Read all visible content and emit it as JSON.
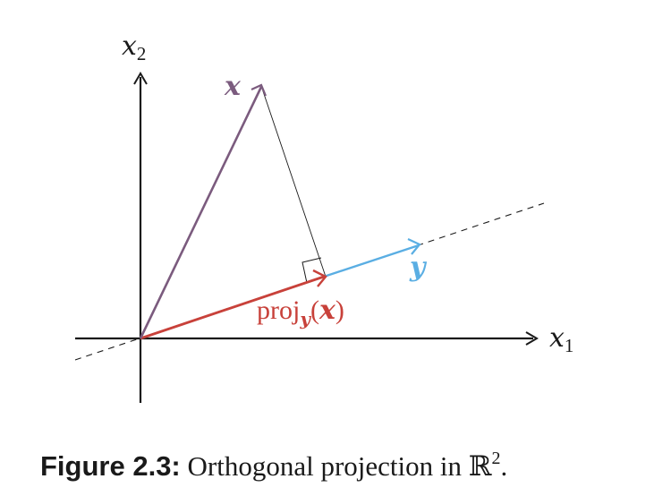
{
  "axes": {
    "x1_label": "x",
    "x1_subscript": "1",
    "x2_label": "x",
    "x2_subscript": "2"
  },
  "vectors": {
    "x_label": "x",
    "y_label": "y",
    "proj_prefix": "proj",
    "proj_subscript": "y",
    "proj_open": "(",
    "proj_arg": "x",
    "proj_close": ")"
  },
  "colors": {
    "axis": "#1a1a1a",
    "vector_x": "#7b5b7e",
    "vector_y": "#5aaee3",
    "projection": "#c8413a",
    "connector": "#1a1a1a"
  },
  "caption": {
    "label": "Figure 2.3:",
    "text": " Orthogonal projection in ",
    "space": "ℝ",
    "space_superscript": "2",
    "period": "."
  }
}
